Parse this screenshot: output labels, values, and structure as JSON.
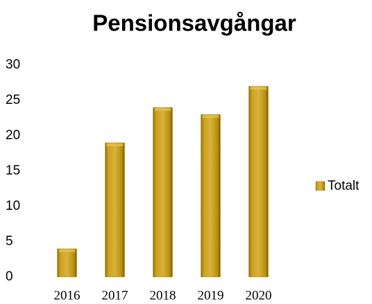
{
  "chart_data": {
    "type": "bar",
    "title": "Pensionsavgångar",
    "categories": [
      "2016",
      "2017",
      "2018",
      "2019",
      "2020"
    ],
    "series": [
      {
        "name": "Totalt",
        "color": "#b8900f",
        "values": [
          4,
          19,
          24,
          23,
          27
        ]
      }
    ],
    "ylim": [
      0,
      30
    ],
    "yticks": [
      0,
      5,
      10,
      15,
      20,
      25,
      30
    ],
    "grid": false,
    "legend": "right"
  }
}
